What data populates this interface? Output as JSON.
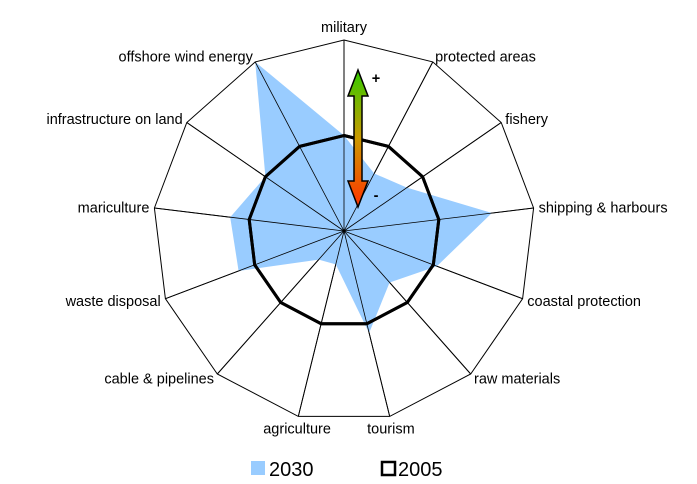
{
  "chart_data": {
    "type": "radar",
    "categories": [
      "military",
      "protected areas",
      "fishery",
      "shipping & harbours",
      "coastal protection",
      "raw materials",
      "tourism",
      "agriculture",
      "cable & pipelines",
      "waste disposal",
      "mariculture",
      "infrastructure on land",
      "offshore wind energy"
    ],
    "range": [
      0,
      1
    ],
    "series": [
      {
        "name": "2030",
        "values": [
          0.5,
          0.34,
          0.4,
          0.78,
          0.52,
          0.36,
          0.55,
          0.18,
          0.2,
          0.59,
          0.6,
          0.5,
          1.0
        ],
        "color": "#99ccff",
        "style": "area"
      },
      {
        "name": "2005",
        "values": [
          0.5,
          0.5,
          0.5,
          0.5,
          0.5,
          0.5,
          0.5,
          0.5,
          0.5,
          0.5,
          0.5,
          0.5,
          0.5
        ],
        "color": "#000000",
        "style": "line"
      }
    ],
    "indicator": {
      "plus_label": "+",
      "minus_label": "-",
      "top_color": "#33cc00",
      "bottom_color": "#ff3300"
    },
    "grid": true,
    "legend_position": "bottom"
  }
}
